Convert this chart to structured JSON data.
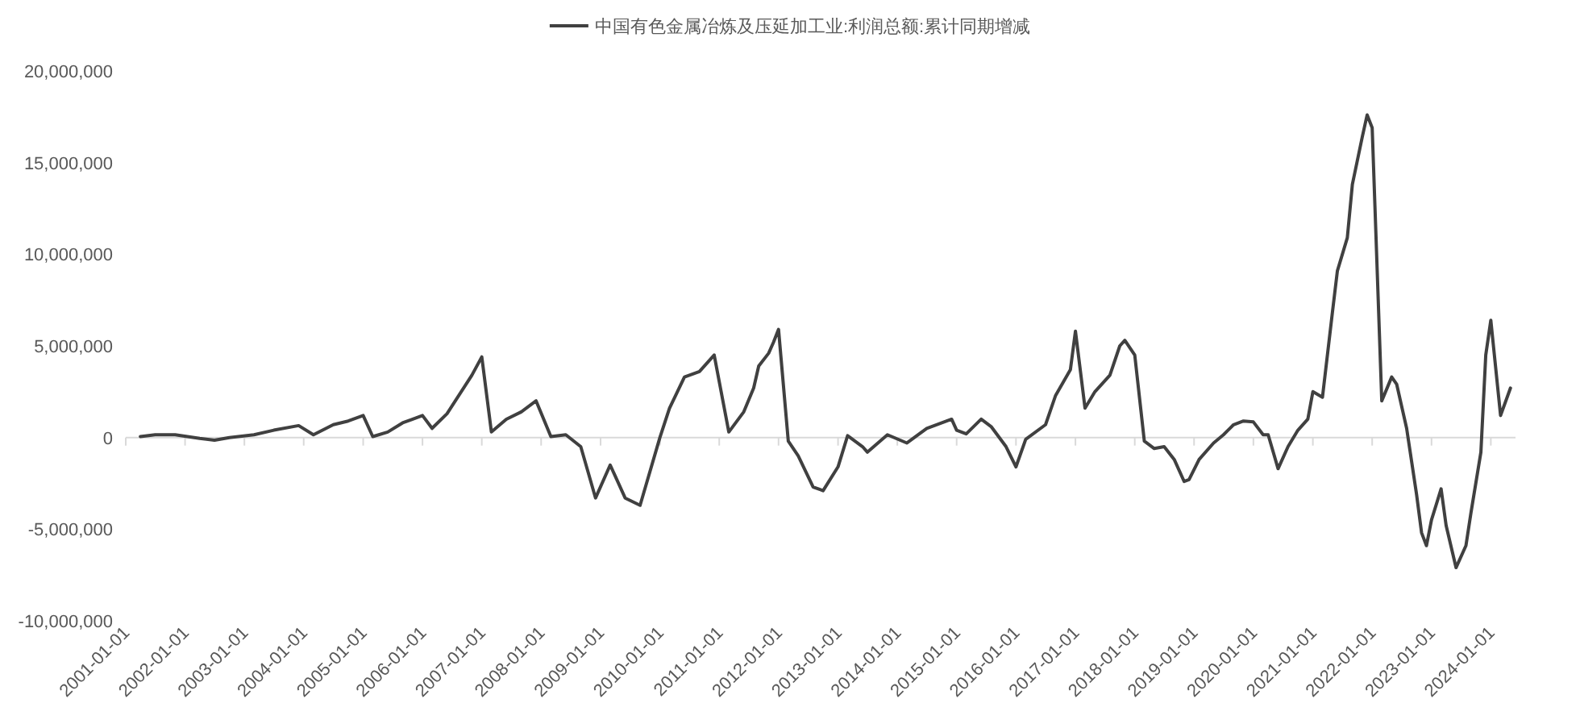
{
  "chart_data": {
    "type": "line",
    "x": [
      "2001-04",
      "2001-07",
      "2001-11",
      "2002-04",
      "2002-07",
      "2002-10",
      "2003-03",
      "2003-07",
      "2003-12",
      "2004-03",
      "2004-07",
      "2004-10",
      "2005-01",
      "2005-03",
      "2005-06",
      "2005-09",
      "2006-01",
      "2006-03",
      "2006-06",
      "2006-11",
      "2007-01",
      "2007-03",
      "2007-06",
      "2007-09",
      "2007-12",
      "2008-03",
      "2008-06",
      "2008-09",
      "2008-12",
      "2009-03",
      "2009-06",
      "2009-09",
      "2010-01",
      "2010-03",
      "2010-06",
      "2010-09",
      "2010-12",
      "2011-03",
      "2011-06",
      "2011-08",
      "2011-09",
      "2011-11",
      "2011-12",
      "2012-01",
      "2012-03",
      "2012-05",
      "2012-08",
      "2012-10",
      "2013-01",
      "2013-03",
      "2013-06",
      "2013-07",
      "2013-11",
      "2014-03",
      "2014-07",
      "2014-11",
      "2014-12",
      "2015-01",
      "2015-03",
      "2015-06",
      "2015-08",
      "2015-11",
      "2016-01",
      "2016-03",
      "2016-07",
      "2016-09",
      "2016-12",
      "2017-01",
      "2017-03",
      "2017-05",
      "2017-08",
      "2017-10",
      "2017-11",
      "2018-01",
      "2018-03",
      "2018-05",
      "2018-07",
      "2018-09",
      "2018-11",
      "2018-12",
      "2019-02",
      "2019-05",
      "2019-07",
      "2019-09",
      "2019-11",
      "2020-01",
      "2020-03",
      "2020-04",
      "2020-06",
      "2020-08",
      "2020-10",
      "2020-12",
      "2021-01",
      "2021-03",
      "2021-05",
      "2021-06",
      "2021-08",
      "2021-09",
      "2021-11",
      "2021-12",
      "2022-01",
      "2022-03",
      "2022-05",
      "2022-06",
      "2022-08",
      "2022-10",
      "2022-11",
      "2022-12",
      "2023-01",
      "2023-03",
      "2023-04",
      "2023-06",
      "2023-08",
      "2023-09",
      "2023-11",
      "2023-12",
      "2024-01",
      "2024-03",
      "2024-05"
    ],
    "series": [
      {
        "name": "中国有色金属冶炼及压延加工业:利润总额:累计同期增减",
        "color": "#404040",
        "values": [
          50000,
          150000,
          150000,
          -50000,
          -150000,
          0,
          150000,
          400000,
          650000,
          150000,
          700000,
          900000,
          1200000,
          50000,
          300000,
          800000,
          1200000,
          500000,
          1300000,
          3400000,
          4400000,
          300000,
          1000000,
          1400000,
          2000000,
          50000,
          150000,
          -500000,
          -3300000,
          -1500000,
          -3300000,
          -3700000,
          0,
          1600000,
          3300000,
          3600000,
          4500000,
          300000,
          1400000,
          2700000,
          3900000,
          4600000,
          5200000,
          5900000,
          -200000,
          -1000000,
          -2700000,
          -2900000,
          -1600000,
          100000,
          -500000,
          -800000,
          150000,
          -300000,
          500000,
          900000,
          1000000,
          400000,
          200000,
          1000000,
          600000,
          -500000,
          -1600000,
          -100000,
          700000,
          2300000,
          3700000,
          5800000,
          1600000,
          2500000,
          3400000,
          5000000,
          5300000,
          4500000,
          -200000,
          -600000,
          -500000,
          -1200000,
          -2400000,
          -2300000,
          -1200000,
          -300000,
          150000,
          700000,
          900000,
          850000,
          150000,
          150000,
          -1700000,
          -500000,
          400000,
          1000000,
          2500000,
          2200000,
          6800000,
          9100000,
          10900000,
          13800000,
          16400000,
          17600000,
          16900000,
          2000000,
          3300000,
          2900000,
          500000,
          -3100000,
          -5200000,
          -5900000,
          -4500000,
          -2800000,
          -4800000,
          -7100000,
          -5900000,
          -4100000,
          -800000,
          4500000,
          6400000,
          1200000,
          2700000
        ]
      }
    ],
    "xlim": [
      "2001-01-01",
      "2024-06-01"
    ],
    "xticks": [
      "2001-01-01",
      "2002-01-01",
      "2003-01-01",
      "2004-01-01",
      "2005-01-01",
      "2006-01-01",
      "2007-01-01",
      "2008-01-01",
      "2009-01-01",
      "2010-01-01",
      "2011-01-01",
      "2012-01-01",
      "2013-01-01",
      "2014-01-01",
      "2015-01-01",
      "2016-01-01",
      "2017-01-01",
      "2018-01-01",
      "2019-01-01",
      "2020-01-01",
      "2021-01-01",
      "2022-01-01",
      "2023-01-01",
      "2024-01-01"
    ],
    "ylim": [
      -10000000,
      20000000
    ],
    "yticks": [
      {
        "value": -10000000,
        "label": "-10,000,000"
      },
      {
        "value": -5000000,
        "label": "-5,000,000"
      },
      {
        "value": 0,
        "label": "0"
      },
      {
        "value": 5000000,
        "label": "5,000,000"
      },
      {
        "value": 10000000,
        "label": "10,000,000"
      },
      {
        "value": 15000000,
        "label": "15,000,000"
      },
      {
        "value": 20000000,
        "label": "20,000,000"
      }
    ],
    "legend": "top"
  }
}
